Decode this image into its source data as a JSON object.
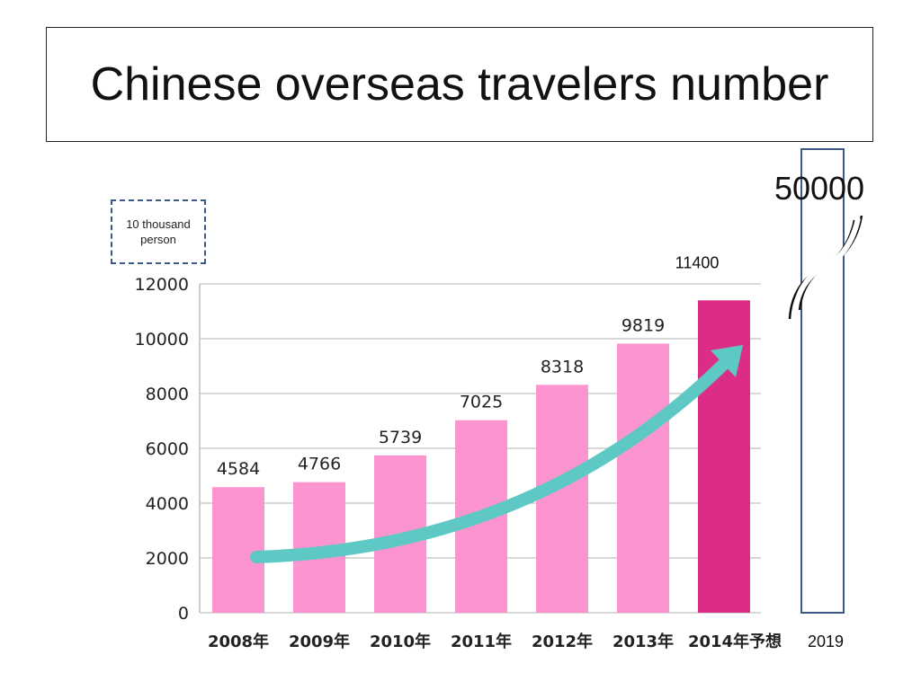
{
  "title": "Chinese overseas travelers number",
  "unit_label": "10 thousand person",
  "colors": {
    "bar": "#fc95cf",
    "bar_highlight": "#dc2d86",
    "arrow": "#5ec8c4",
    "box": "#3b5b86",
    "grid": "#cccccc"
  },
  "chart_data": {
    "type": "bar",
    "categories": [
      "2008年",
      "2009年",
      "2010年",
      "2011年",
      "2012年",
      "2013年",
      "2014年予想"
    ],
    "values": [
      4584,
      4766,
      5739,
      7025,
      8318,
      9819,
      11400
    ],
    "data_labels": [
      "4584",
      "4766",
      "5739",
      "7025",
      "8318",
      "9819",
      "11400"
    ],
    "highlight_index": 6,
    "ylim": [
      0,
      12000
    ],
    "yticks": [
      0,
      2000,
      4000,
      6000,
      8000,
      10000,
      12000
    ],
    "grid": true,
    "forecast": {
      "category": "2019",
      "value": 50000,
      "label": "50000"
    }
  }
}
